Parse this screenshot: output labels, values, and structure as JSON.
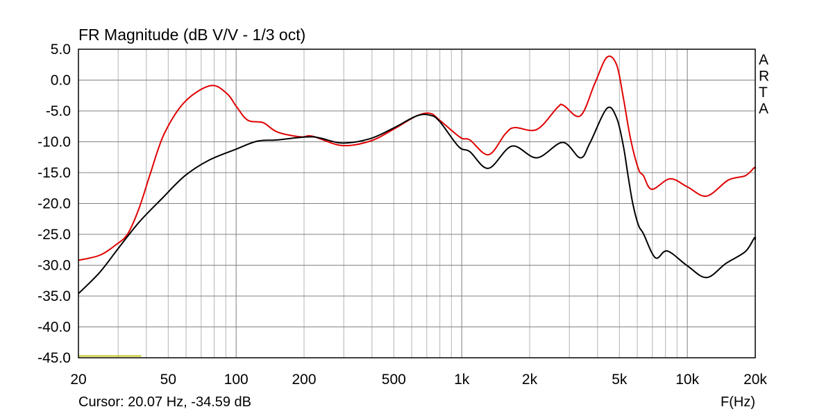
{
  "chart_data": {
    "type": "line",
    "title": "FR Magnitude (dB V/V - 1/3 oct)",
    "xlabel": "F(Hz)",
    "ylabel": "",
    "x_scale": "log",
    "xlim": [
      20,
      20000
    ],
    "ylim": [
      -45,
      5
    ],
    "grid": true,
    "x_ticks": [
      20,
      50,
      100,
      200,
      500,
      1000,
      2000,
      5000,
      10000,
      20000
    ],
    "x_tick_labels": [
      "20",
      "50",
      "100",
      "200",
      "500",
      "1k",
      "2k",
      "5k",
      "10k",
      "20k"
    ],
    "y_ticks": [
      5,
      0,
      -5,
      -10,
      -15,
      -20,
      -25,
      -30,
      -35,
      -40,
      -45
    ],
    "y_tick_labels": [
      "5.0",
      "0.0",
      "-5.0",
      "-10.0",
      "-15.0",
      "-20.0",
      "-25.0",
      "-30.0",
      "-35.0",
      "-40.0",
      "-45.0"
    ],
    "watermark": "ARTA",
    "cursor_text": "Cursor: 20.07 Hz, -34.59 dB",
    "series": [
      {
        "color": "#e00000",
        "x": [
          20,
          24.8,
          29.3,
          33.1,
          37.2,
          41.7,
          48,
          59.3,
          77.1,
          91.1,
          99.9,
          112.6,
          131.8,
          152,
          193,
          218,
          294,
          392,
          497,
          632,
          726,
          798,
          986,
          1086,
          1314,
          1561,
          1717,
          2153,
          2663,
          2826,
          3355,
          3893,
          4400,
          4856,
          5200,
          5600,
          6070,
          6390,
          6960,
          8380,
          10000,
          12170,
          15200,
          18070,
          19800,
          20000
        ],
        "y": [
          -29.2,
          -28.4,
          -26.7,
          -24.9,
          -20.7,
          -15.1,
          -8.7,
          -3.5,
          -0.9,
          -2.2,
          -4.2,
          -6.5,
          -6.9,
          -8.4,
          -9.2,
          -9.1,
          -10.6,
          -9.9,
          -8.0,
          -5.8,
          -5.4,
          -6.5,
          -9.3,
          -9.7,
          -12.1,
          -8.7,
          -7.7,
          -8.0,
          -4.4,
          -4.1,
          -5.8,
          -0.5,
          3.7,
          2.5,
          -2.8,
          -9.5,
          -14.4,
          -15.5,
          -17.7,
          -16.0,
          -17.3,
          -18.8,
          -16.2,
          -15.5,
          -14.2,
          -14.4
        ]
      },
      {
        "color": "#000000",
        "x": [
          20,
          24.8,
          30,
          37.2,
          46.9,
          59.3,
          75.6,
          99.9,
          123.9,
          152,
          218,
          294,
          392,
          497,
          632,
          726,
          798,
          970,
          1086,
          1314,
          1669,
          2153,
          2800,
          3355,
          3700,
          4400,
          4856,
          5200,
          5460,
          5730,
          6070,
          6390,
          7220,
          8150,
          10000,
          12170,
          14840,
          18070,
          19800,
          20000
        ],
        "y": [
          -34.6,
          -31.2,
          -27.3,
          -23.0,
          -19.2,
          -15.5,
          -13.0,
          -11.2,
          -9.9,
          -9.7,
          -9.2,
          -10.2,
          -9.5,
          -7.8,
          -5.8,
          -5.7,
          -6.7,
          -10.8,
          -11.6,
          -14.3,
          -10.7,
          -12.6,
          -10.1,
          -12.6,
          -10.2,
          -4.6,
          -6.1,
          -10.6,
          -15.5,
          -20.0,
          -23.5,
          -24.9,
          -28.8,
          -27.7,
          -30.1,
          -32.0,
          -29.7,
          -27.8,
          -25.6,
          -25.9
        ]
      }
    ],
    "marker_line": {
      "color": "#c8c820",
      "x": [
        20,
        38
      ],
      "y": -44.7
    }
  }
}
